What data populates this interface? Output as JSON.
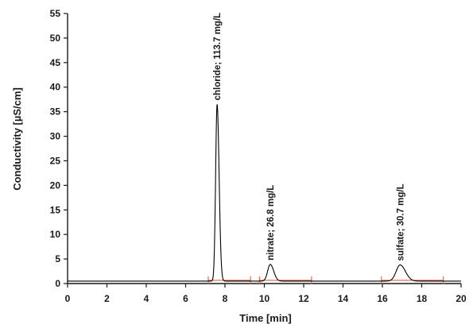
{
  "chart_data": {
    "type": "line",
    "title": "",
    "xlabel": "Time [min]",
    "ylabel": "Conductivity [µS/cm]",
    "xlim": [
      0,
      20
    ],
    "ylim": [
      0,
      55
    ],
    "x_ticks": [
      0,
      2,
      4,
      6,
      8,
      10,
      12,
      14,
      16,
      18,
      20
    ],
    "y_ticks": [
      0,
      5,
      10,
      15,
      20,
      25,
      30,
      35,
      40,
      45,
      50,
      55
    ],
    "grid": false,
    "legend": "none",
    "baseline": 0.5,
    "colors": {
      "trace": "#000000",
      "integration": "#e06040",
      "axis": "#1a1a1a"
    },
    "peaks": [
      {
        "label": "chloride; 113.7 mg/L",
        "time": 7.6,
        "height": 36.0,
        "sigma": 0.075
      },
      {
        "label": "nitrate; 26.8 mg/L",
        "time": 10.3,
        "height": 3.4,
        "sigma": 0.13
      },
      {
        "label": "sulfate; 30.7 mg/L",
        "time": 16.9,
        "height": 3.3,
        "sigma": 0.2
      }
    ],
    "integration_segments": [
      {
        "start": 7.15,
        "end": 9.3
      },
      {
        "start": 9.75,
        "end": 12.4
      },
      {
        "start": 15.95,
        "end": 19.1
      }
    ]
  }
}
